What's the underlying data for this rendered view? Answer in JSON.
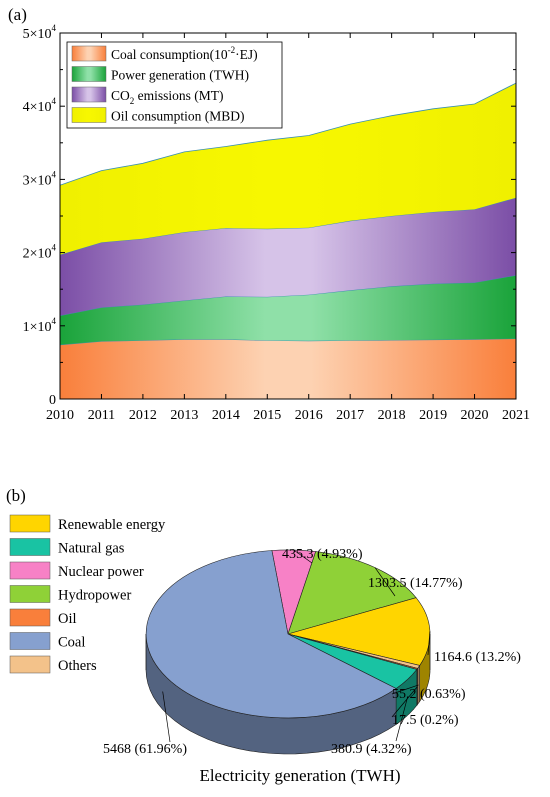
{
  "chart_data": [
    {
      "panel": "(a)",
      "type": "area",
      "stacked": true,
      "x": [
        2010,
        2011,
        2012,
        2013,
        2014,
        2015,
        2016,
        2017,
        2018,
        2019,
        2020,
        2021
      ],
      "ylim": [
        0,
        50000
      ],
      "yticks": [
        {
          "value": 0,
          "mant": "0",
          "exp": ""
        },
        {
          "value": 10000,
          "mant": "1×10",
          "exp": "4"
        },
        {
          "value": 20000,
          "mant": "2×10",
          "exp": "4"
        },
        {
          "value": 30000,
          "mant": "3×10",
          "exp": "4"
        },
        {
          "value": 40000,
          "mant": "4×10",
          "exp": "4"
        },
        {
          "value": 50000,
          "mant": "5×10",
          "exp": "4"
        }
      ],
      "series": [
        {
          "name": "Coal consumption(10-2·EJ)",
          "legend_main": "Coal consumption(10",
          "legend_sup": "-2",
          "legend_rest": "·EJ)",
          "color": "#f97f3b",
          "light": "#fdd2b2",
          "values": [
            7400,
            7900,
            8000,
            8150,
            8150,
            8000,
            7950,
            8000,
            8050,
            8100,
            8150,
            8250
          ]
        },
        {
          "name": "Power generation (TWH)",
          "legend_main": "Power generation (TWH)",
          "legend_sup": "",
          "legend_rest": "",
          "color": "#1aa33a",
          "light": "#8fe0a8",
          "values": [
            4000,
            4600,
            4900,
            5300,
            5850,
            5950,
            6300,
            6850,
            7350,
            7650,
            7750,
            8650
          ]
        },
        {
          "name": "CO2 emissions (MT)",
          "legend_main": "CO",
          "legend_sub": "2",
          "legend_rest": " emissions (MT)",
          "color": "#7b4ea6",
          "light": "#d6c3e8",
          "values": [
            8300,
            8900,
            9000,
            9350,
            9350,
            9300,
            9150,
            9500,
            9600,
            9800,
            10000,
            10600
          ]
        },
        {
          "name": "Oil consumption (MBD)",
          "legend_main": "Oil consumption (MBD)",
          "legend_sup": "",
          "legend_rest": "",
          "color": "#f0f000",
          "light": "#f7f700",
          "values": [
            9500,
            9800,
            10300,
            10950,
            11150,
            12100,
            12600,
            13200,
            13700,
            14100,
            14400,
            15650
          ]
        }
      ]
    },
    {
      "panel": "(b)",
      "type": "pie",
      "xlabel": "Electricity generation (TWH)",
      "legend": [
        "Renewable energy",
        "Natural gas",
        "Nuclear power",
        "Hydropower",
        "Oil",
        "Coal",
        "Others"
      ],
      "slices": [
        {
          "name": "Nuclear power",
          "value": 435.3,
          "label": "435.3 (4.93%)",
          "color": "#f781c6"
        },
        {
          "name": "Hydropower",
          "value": 1303.5,
          "label": "1303.5 (14.77%)",
          "color": "#8fd137"
        },
        {
          "name": "Renewable energy",
          "value": 1164.6,
          "label": "1164.6 (13.2%)",
          "color": "#ffd500"
        },
        {
          "name": "Others",
          "value": 55.2,
          "label": "55.2 (0.63%)",
          "color": "#f3c28a"
        },
        {
          "name": "Oil",
          "value": 17.5,
          "label": "17.5 (0.2%)",
          "color": "#f97f3b"
        },
        {
          "name": "Natural gas",
          "value": 380.9,
          "label": "380.9 (4.32%)",
          "color": "#19c3a3"
        },
        {
          "name": "Coal",
          "value": 5468,
          "label": "5468 (61.96%)",
          "color": "#86a0cf"
        }
      ]
    }
  ]
}
